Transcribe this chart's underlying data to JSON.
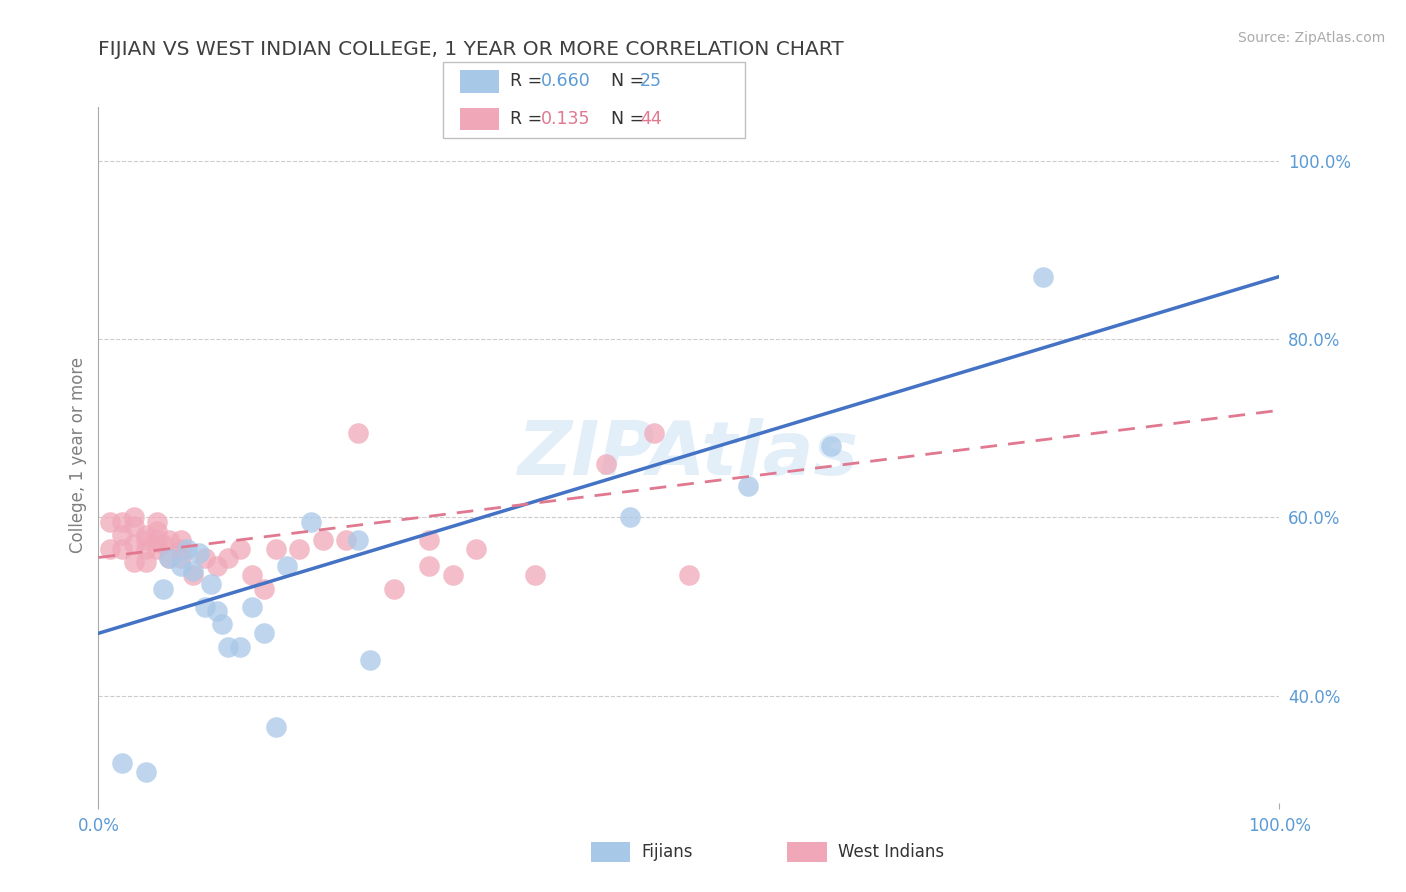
{
  "title": "FIJIAN VS WEST INDIAN COLLEGE, 1 YEAR OR MORE CORRELATION CHART",
  "source_text": "Source: ZipAtlas.com",
  "ylabel": "College, 1 year or more",
  "watermark_text": "ZIPAtlas",
  "xlim": [
    0.0,
    1.0
  ],
  "ylim": [
    0.28,
    1.06
  ],
  "right_yticks": [
    0.4,
    0.6,
    0.8,
    1.0
  ],
  "right_yticklabels": [
    "40.0%",
    "60.0%",
    "80.0%",
    "100.0%"
  ],
  "fijian_color": "#a8c8e8",
  "west_indian_color": "#f0a8b8",
  "fijian_line_color": "#4472c4",
  "west_indian_line_color": "#e07890",
  "grid_color": "#cccccc",
  "background_color": "#ffffff",
  "title_color": "#404040",
  "axis_label_color": "#808080",
  "tick_color": "#5b9bd5",
  "legend_r_fijian": "R = 0.660",
  "legend_n_fijian": "N = 25",
  "legend_r_west": "R =  0.135",
  "legend_n_west": "N = 44",
  "fijian_x": [
    0.02,
    0.04,
    0.055,
    0.06,
    0.07,
    0.075,
    0.08,
    0.085,
    0.09,
    0.095,
    0.1,
    0.105,
    0.11,
    0.12,
    0.13,
    0.14,
    0.15,
    0.16,
    0.18,
    0.22,
    0.23,
    0.45,
    0.55,
    0.62,
    0.8
  ],
  "fijian_y": [
    0.325,
    0.315,
    0.52,
    0.555,
    0.545,
    0.565,
    0.54,
    0.56,
    0.5,
    0.525,
    0.495,
    0.48,
    0.455,
    0.455,
    0.5,
    0.47,
    0.365,
    0.545,
    0.595,
    0.575,
    0.44,
    0.6,
    0.635,
    0.68,
    0.87
  ],
  "west_indian_x": [
    0.01,
    0.01,
    0.02,
    0.02,
    0.02,
    0.03,
    0.03,
    0.03,
    0.03,
    0.04,
    0.04,
    0.04,
    0.04,
    0.05,
    0.05,
    0.05,
    0.05,
    0.055,
    0.06,
    0.06,
    0.07,
    0.07,
    0.07,
    0.08,
    0.09,
    0.1,
    0.11,
    0.12,
    0.13,
    0.14,
    0.15,
    0.17,
    0.19,
    0.21,
    0.22,
    0.25,
    0.28,
    0.3,
    0.32,
    0.37,
    0.28,
    0.43,
    0.47,
    0.5
  ],
  "west_indian_y": [
    0.565,
    0.595,
    0.565,
    0.595,
    0.58,
    0.55,
    0.57,
    0.59,
    0.6,
    0.55,
    0.565,
    0.575,
    0.58,
    0.565,
    0.575,
    0.585,
    0.595,
    0.57,
    0.555,
    0.575,
    0.555,
    0.565,
    0.575,
    0.535,
    0.555,
    0.545,
    0.555,
    0.565,
    0.535,
    0.52,
    0.565,
    0.565,
    0.575,
    0.575,
    0.695,
    0.52,
    0.575,
    0.535,
    0.565,
    0.535,
    0.545,
    0.66,
    0.695,
    0.535
  ],
  "fijian_line_x": [
    0.0,
    1.0
  ],
  "fijian_line_y": [
    0.47,
    0.87
  ],
  "west_indian_line_x": [
    0.0,
    1.0
  ],
  "west_indian_line_y": [
    0.555,
    0.72
  ]
}
